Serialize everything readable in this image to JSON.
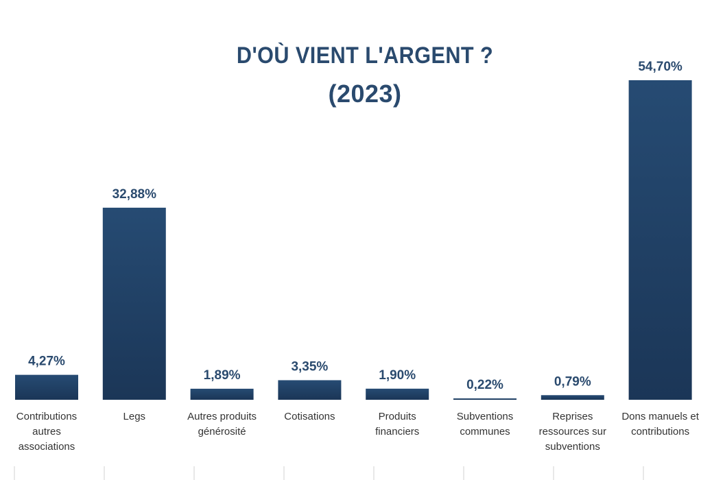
{
  "chart_data": {
    "type": "bar",
    "title": "D'OÙ VIENT L'ARGENT ?",
    "subtitle": "(2023)",
    "categories": [
      [
        "Contributions",
        "autres",
        "associations"
      ],
      [
        "Legs"
      ],
      [
        "Autres produits",
        "générosité"
      ],
      [
        "Cotisations"
      ],
      [
        "Produits",
        "financiers"
      ],
      [
        "Subventions",
        "communes"
      ],
      [
        "Reprises",
        "ressources sur",
        "subventions"
      ],
      [
        "Dons manuels et",
        "contributions"
      ]
    ],
    "values": [
      4.27,
      32.88,
      1.89,
      3.35,
      1.9,
      0.22,
      0.79,
      54.7
    ],
    "data_labels": [
      "4,27%",
      "32,88%",
      "1,89%",
      "3,35%",
      "1,90%",
      "0,22%",
      "0,79%",
      "54,70%"
    ],
    "xlabel": "",
    "ylabel": "",
    "ylim": [
      0,
      54.7
    ],
    "grid": false,
    "legend": "none",
    "colors": {
      "bar_top": "#264b73",
      "bar_bottom": "#1b3657",
      "data_label": "#2a4a6e",
      "category_label": "#333333",
      "tick": "#d0d0d0"
    }
  }
}
